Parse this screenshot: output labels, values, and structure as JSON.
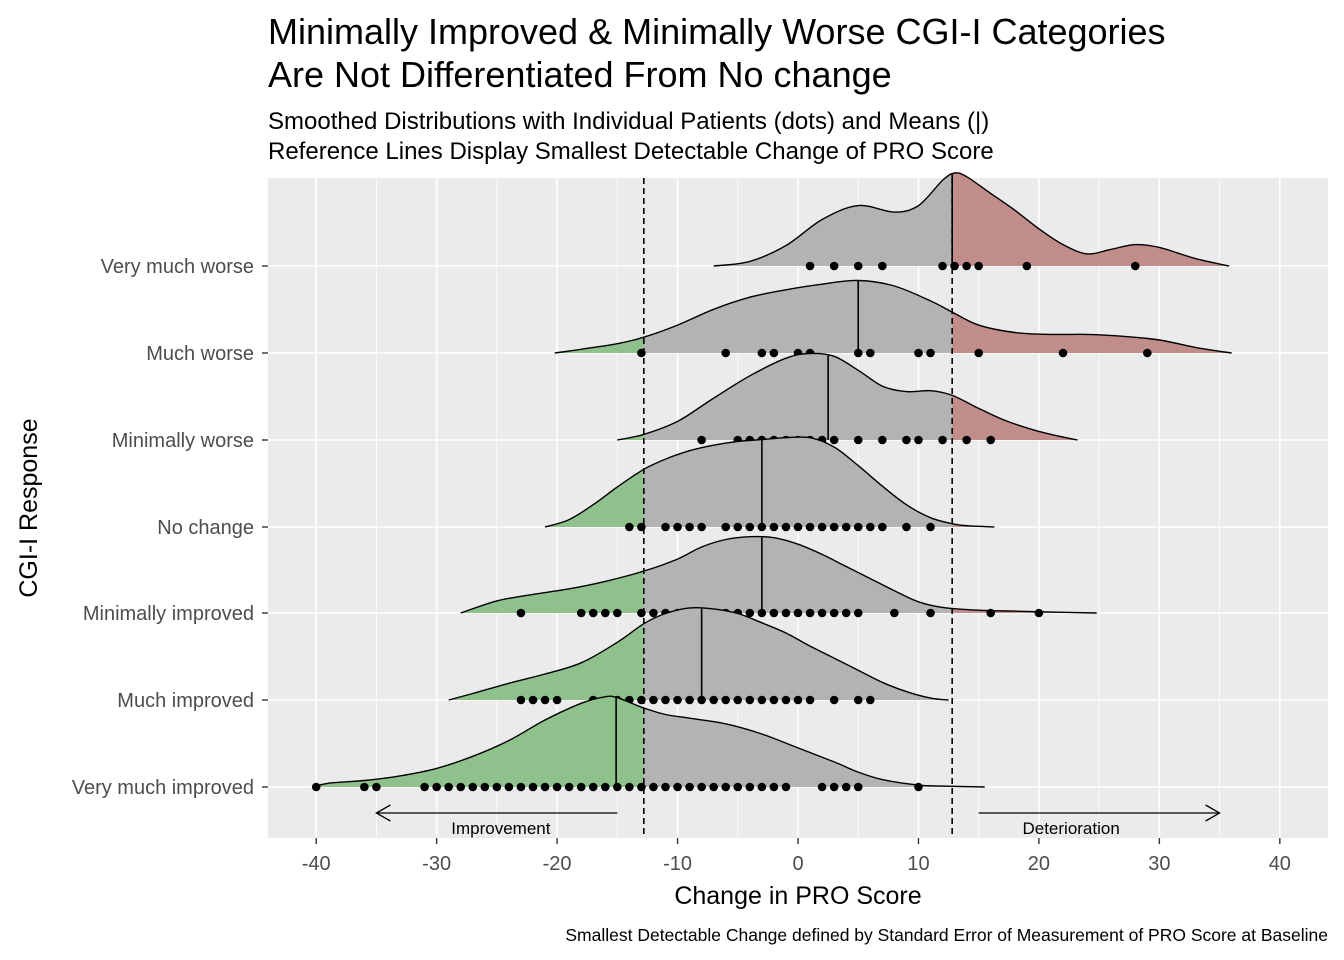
{
  "chart_data": {
    "type": "ridgeline",
    "title": [
      "Minimally Improved & Minimally Worse CGI-I Categories",
      "Are Not Differentiated From No change"
    ],
    "subtitle": [
      "Smoothed Distributions with Individual Patients (dots) and Means (|)",
      "Reference Lines Display Smallest Detectable Change of PRO Score"
    ],
    "caption": "Smallest Detectable Change defined by Standard Error of Measurement of PRO Score at Baseline",
    "xlabel": "Change in PRO Score",
    "ylabel": "CGI-I Response",
    "xlim": [
      -44,
      44
    ],
    "x_ticks": [
      -40,
      -30,
      -20,
      -10,
      0,
      10,
      20,
      30,
      40
    ],
    "reference_lines": [
      -12.8,
      12.8
    ],
    "annotations": {
      "improvement": {
        "label": "Improvement",
        "from": -15,
        "to": -35
      },
      "deterioration": {
        "label": "Deterioration",
        "from": 15,
        "to": 35
      }
    },
    "colors": {
      "panel": "#EBEBEB",
      "grid": "#FFFFFF",
      "middle": "#B3B3B3",
      "improvement": "#8FC18C",
      "deterioration": "#C08D8B"
    },
    "categories": [
      "Very much improved",
      "Much improved",
      "Minimally improved",
      "No change",
      "Minimally worse",
      "Much worse",
      "Very much worse"
    ],
    "series": [
      {
        "name": "Very much improved",
        "mean": -15.1,
        "points": [
          -40,
          -36,
          -35,
          -31,
          -30,
          -29,
          -28,
          -27,
          -26,
          -25,
          -24,
          -23,
          -22,
          -21,
          -20,
          -19,
          -18,
          -17,
          -16,
          -15,
          -14,
          -13,
          -12,
          -11,
          -10,
          -9,
          -8,
          -7,
          -6,
          -5,
          -4,
          -3,
          -2,
          -1,
          2,
          3,
          4,
          5,
          10
        ],
        "density_x": [
          -40.3,
          -39,
          -36,
          -33,
          -30,
          -27,
          -24,
          -21,
          -18,
          -16,
          -15,
          -12.8,
          -11,
          -9,
          -6,
          -3,
          0,
          3,
          5,
          7,
          10,
          12,
          13.5,
          15.5
        ],
        "density_y": [
          0,
          0.04,
          0.07,
          0.12,
          0.2,
          0.33,
          0.5,
          0.72,
          0.9,
          0.97,
          0.96,
          0.85,
          0.78,
          0.74,
          0.68,
          0.57,
          0.42,
          0.27,
          0.16,
          0.08,
          0.02,
          0.01,
          0.005,
          0
        ]
      },
      {
        "name": "Much improved",
        "mean": -8,
        "points": [
          -23,
          -22,
          -21,
          -20,
          -17,
          -15,
          -14,
          -13,
          -12,
          -11,
          -10,
          -9,
          -8,
          -7,
          -6,
          -5,
          -4,
          -3,
          -2,
          -1,
          0,
          1,
          3,
          5,
          6
        ],
        "density_x": [
          -29,
          -27,
          -24,
          -21,
          -18,
          -15,
          -12.8,
          -11,
          -9,
          -7,
          -5,
          -3,
          -1,
          1,
          3,
          5,
          7,
          9,
          11,
          12.5
        ],
        "density_y": [
          0,
          0.07,
          0.18,
          0.28,
          0.4,
          0.62,
          0.82,
          0.93,
          0.99,
          0.98,
          0.93,
          0.83,
          0.72,
          0.58,
          0.45,
          0.32,
          0.19,
          0.09,
          0.02,
          0
        ]
      },
      {
        "name": "Minimally improved",
        "mean": -3,
        "points": [
          -23,
          -18,
          -17,
          -16,
          -15,
          -13,
          -12,
          -11,
          -10,
          -9,
          -8,
          -7,
          -6,
          -5,
          -4,
          -3,
          -2,
          -1,
          0,
          1,
          2,
          3,
          4,
          5,
          8,
          11,
          16,
          20
        ],
        "density_x": [
          -28,
          -25,
          -22,
          -19,
          -16,
          -12.8,
          -10,
          -8,
          -6,
          -4,
          -2,
          0,
          2,
          4,
          6,
          8,
          10,
          12,
          15,
          18,
          21,
          24.8
        ],
        "density_y": [
          0,
          0.13,
          0.2,
          0.26,
          0.34,
          0.45,
          0.58,
          0.71,
          0.79,
          0.82,
          0.81,
          0.74,
          0.63,
          0.5,
          0.37,
          0.24,
          0.12,
          0.06,
          0.03,
          0.02,
          0.01,
          0
        ]
      },
      {
        "name": "No change",
        "mean": -3,
        "points": [
          -14,
          -13,
          -11,
          -10,
          -9,
          -8,
          -6,
          -5,
          -4,
          -3,
          -2,
          -1,
          0,
          1,
          2,
          3,
          4,
          5,
          6,
          7,
          9,
          11
        ],
        "density_x": [
          -21,
          -19,
          -17,
          -15,
          -12.8,
          -11,
          -9,
          -7,
          -5,
          -3,
          -1,
          1,
          3,
          5,
          7,
          9,
          11,
          13,
          14.5,
          16.3
        ],
        "density_y": [
          0,
          0.08,
          0.24,
          0.43,
          0.62,
          0.73,
          0.82,
          0.88,
          0.92,
          0.94,
          0.96,
          0.96,
          0.86,
          0.66,
          0.44,
          0.24,
          0.1,
          0.03,
          0.01,
          0
        ]
      },
      {
        "name": "Minimally worse",
        "mean": 2.5,
        "points": [
          -8,
          -5,
          -4,
          -3,
          -2,
          -1,
          0,
          1,
          2,
          3,
          5,
          7,
          9,
          10,
          12,
          14,
          16
        ],
        "density_x": [
          -15,
          -12.8,
          -10,
          -7,
          -4,
          -1,
          1,
          3,
          5,
          7,
          9,
          11,
          12.8,
          15,
          17,
          19,
          21,
          23.2
        ],
        "density_y": [
          0,
          0.06,
          0.2,
          0.45,
          0.69,
          0.88,
          0.93,
          0.9,
          0.75,
          0.58,
          0.52,
          0.53,
          0.48,
          0.34,
          0.22,
          0.13,
          0.06,
          0
        ]
      },
      {
        "name": "Much worse",
        "mean": 5,
        "points": [
          -13,
          -6,
          -3,
          -2,
          0,
          1,
          5,
          6,
          10,
          11,
          15,
          22,
          29
        ],
        "density_x": [
          -20.2,
          -18,
          -15,
          -12.8,
          -10,
          -7,
          -4,
          -1,
          2,
          5,
          8,
          11,
          12.8,
          15,
          18,
          21,
          24,
          27,
          30,
          33,
          36
        ],
        "density_y": [
          0,
          0.04,
          0.1,
          0.17,
          0.3,
          0.47,
          0.6,
          0.68,
          0.74,
          0.78,
          0.72,
          0.56,
          0.44,
          0.3,
          0.22,
          0.2,
          0.2,
          0.18,
          0.14,
          0.06,
          0
        ]
      },
      {
        "name": "Very much worse",
        "mean": 12.8,
        "points": [
          1,
          3,
          5,
          7,
          12,
          13,
          14,
          15,
          19,
          28
        ],
        "density_x": [
          -7,
          -4,
          -1,
          2,
          5,
          8,
          10,
          12,
          13,
          14,
          16,
          18,
          20,
          22,
          24,
          26,
          28,
          30,
          33,
          35.8
        ],
        "density_y": [
          0,
          0.05,
          0.22,
          0.5,
          0.65,
          0.58,
          0.65,
          0.92,
          1.0,
          0.96,
          0.78,
          0.6,
          0.4,
          0.23,
          0.13,
          0.18,
          0.23,
          0.2,
          0.08,
          0
        ]
      }
    ]
  }
}
